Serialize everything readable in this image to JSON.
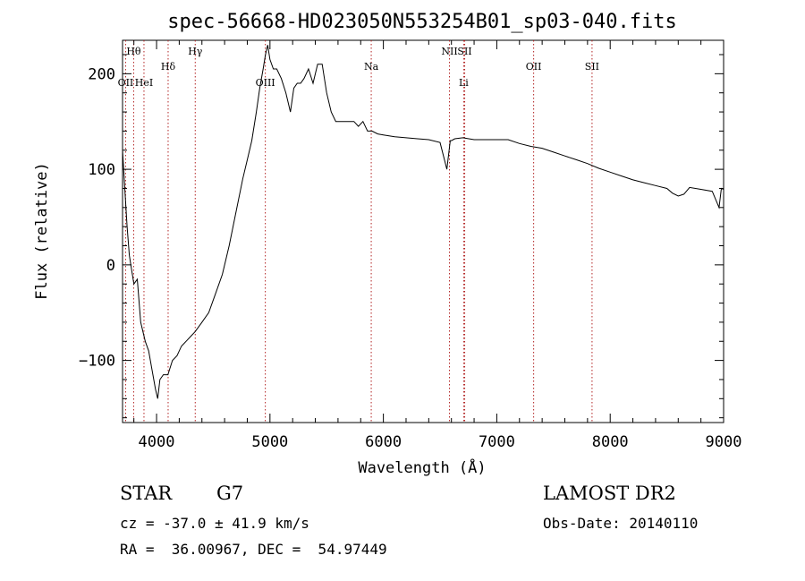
{
  "chart_data": {
    "type": "line",
    "title": "spec-56668-HD023050N553254B01_sp03-040.fits",
    "xlabel": "Wavelength (Å)",
    "ylabel": "Flux (relative)",
    "xlim": [
      3700,
      9000
    ],
    "ylim": [
      -165,
      235
    ],
    "x_ticks": [
      4000,
      5000,
      6000,
      7000,
      8000,
      9000
    ],
    "y_ticks": [
      -100,
      0,
      100,
      200
    ],
    "grid": false,
    "series": [
      {
        "color": "#000000",
        "x": [
          3700,
          3720,
          3740,
          3760,
          3780,
          3800,
          3830,
          3860,
          3900,
          3930,
          3960,
          3990,
          4010,
          4030,
          4060,
          4100,
          4140,
          4180,
          4220,
          4260,
          4300,
          4340,
          4400,
          4460,
          4520,
          4580,
          4640,
          4700,
          4760,
          4800,
          4840,
          4880,
          4910,
          4940,
          4960,
          4980,
          5000,
          5030,
          5060,
          5100,
          5140,
          5180,
          5210,
          5240,
          5270,
          5300,
          5340,
          5380,
          5420,
          5460,
          5500,
          5540,
          5580,
          5620,
          5660,
          5700,
          5740,
          5780,
          5820,
          5860,
          5900,
          5950,
          6000,
          6100,
          6200,
          6300,
          6400,
          6500,
          6560,
          6590,
          6600,
          6630,
          6700,
          6800,
          6900,
          7000,
          7100,
          7200,
          7300,
          7400,
          7500,
          7600,
          7700,
          7800,
          7900,
          8000,
          8100,
          8200,
          8300,
          8400,
          8500,
          8550,
          8600,
          8650,
          8700,
          8800,
          8900,
          8960,
          8980,
          9000
        ],
        "y": [
          120,
          80,
          40,
          10,
          -5,
          -20,
          -15,
          -60,
          -80,
          -90,
          -110,
          -130,
          -140,
          -120,
          -115,
          -115,
          -100,
          -95,
          -85,
          -80,
          -75,
          -70,
          -60,
          -50,
          -30,
          -10,
          20,
          55,
          90,
          110,
          130,
          160,
          185,
          205,
          220,
          230,
          215,
          205,
          205,
          195,
          180,
          160,
          185,
          190,
          190,
          195,
          205,
          190,
          210,
          210,
          180,
          160,
          150,
          150,
          150,
          150,
          150,
          145,
          150,
          140,
          140,
          137,
          136,
          134,
          133,
          132,
          131,
          128,
          100,
          130,
          130,
          132,
          133,
          131,
          131,
          131,
          131,
          127,
          124,
          122,
          118,
          114,
          110,
          106,
          101,
          97,
          93,
          89,
          86,
          83,
          80,
          75,
          72,
          74,
          81,
          79,
          77,
          60,
          80,
          79
        ]
      }
    ],
    "line_marks": [
      {
        "label": "Hθ",
        "x": 3798,
        "level": "high"
      },
      {
        "label": "OII",
        "x": 3727,
        "level": "low"
      },
      {
        "label": "HeI",
        "x": 3889,
        "level": "low"
      },
      {
        "label": "Hδ",
        "x": 4102,
        "level": "mid"
      },
      {
        "label": "Hγ",
        "x": 4341,
        "level": "high"
      },
      {
        "label": "OIII",
        "x": 4959,
        "level": "low"
      },
      {
        "label": "Na",
        "x": 5893,
        "level": "mid"
      },
      {
        "label": "NII",
        "x": 6583,
        "level": "high"
      },
      {
        "label": "SII",
        "x": 6717,
        "level": "high"
      },
      {
        "label": "Li",
        "x": 6708,
        "level": "low"
      },
      {
        "label": "OII",
        "x": 7325,
        "level": "mid"
      },
      {
        "label": "SII",
        "x": 7840,
        "level": "mid"
      }
    ]
  },
  "info": {
    "object_class": "STAR",
    "subclass": "G7",
    "survey": "LAMOST DR2",
    "redshift": "cz = -37.0 ± 41.9 km/s",
    "obs_date": "Obs-Date: 20140110",
    "coords": "RA =  36.00967, DEC =  54.97449"
  }
}
